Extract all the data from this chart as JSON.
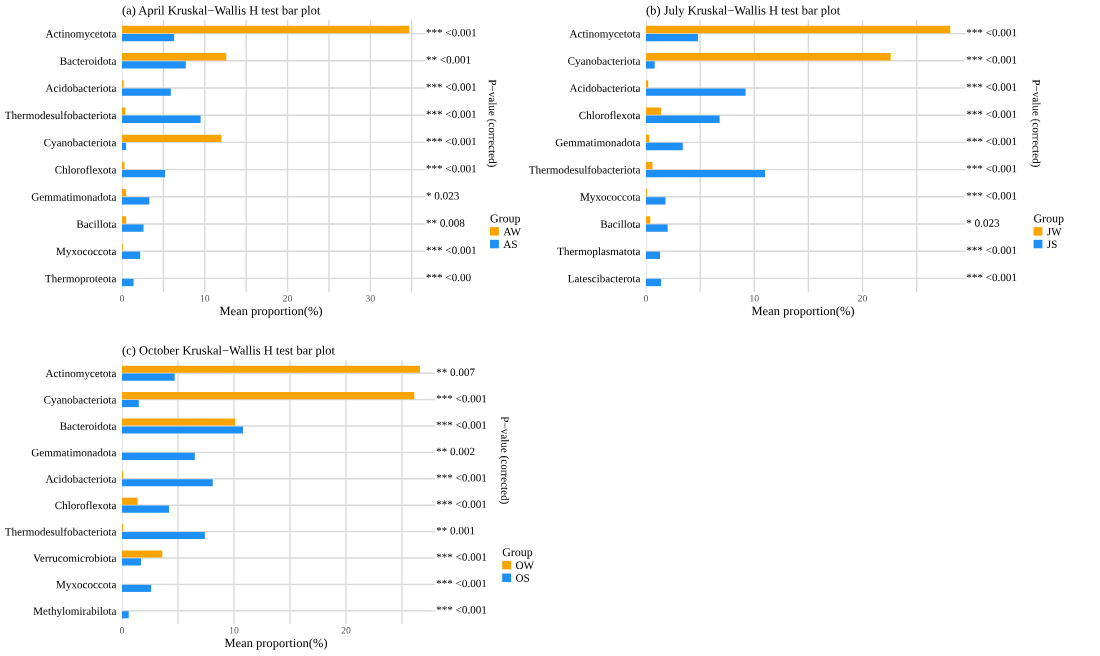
{
  "chart_data": [
    {
      "type": "bar",
      "orientation": "horizontal",
      "title": "(a) April Kruskal−Wallis H test bar plot",
      "xlabel": "Mean proportion(%)",
      "y2label": "P−value (corrected)",
      "legend_title": "Group",
      "legend": "right",
      "grid": true,
      "categories": [
        "Actinomycetota",
        "Bacteroidota",
        "Acidobacteriota",
        "Thermodesulfobacteriota",
        "Cyanobacteriota",
        "Chloroflexota",
        "Gemmatimonadota",
        "Bacillota",
        "Myxococcota",
        "Thermoproteota"
      ],
      "series": [
        {
          "name": "AW",
          "color": "#f9a400",
          "values": [
            34.7,
            12.6,
            0.2,
            0.4,
            12.0,
            0.3,
            0.5,
            0.5,
            0.1,
            0
          ]
        },
        {
          "name": "AS",
          "color": "#1e8ff5",
          "values": [
            6.3,
            7.7,
            5.9,
            9.5,
            0.5,
            5.2,
            3.3,
            2.6,
            2.2,
            1.4
          ]
        }
      ],
      "xlim": [
        0,
        36
      ],
      "xticks": [
        0,
        {
          "value": 5,
          "label": null
        },
        10,
        {
          "value": 15,
          "label": null
        },
        20,
        {
          "value": 25,
          "label": null
        },
        30,
        {
          "value": 35,
          "label": null
        }
      ],
      "annotations": [
        "*** <0.001",
        "** <0.001",
        "*** <0.001",
        "*** <0.001",
        "*** <0.001",
        "*** <0.001",
        "* 0.023",
        "** 0.008",
        "*** <0.001",
        "*** <0.00"
      ]
    },
    {
      "type": "bar",
      "orientation": "horizontal",
      "title": "(b) July Kruskal−Wallis H test bar plot",
      "xlabel": "Mean proportion(%)",
      "y2label": "P−value (corrected)",
      "legend_title": "Group",
      "legend": "right",
      "grid": true,
      "categories": [
        "Actinomycetota",
        "Cyanobacteriota",
        "Acidobacteriota",
        "Chloroflexota",
        "Gemmatimonadota",
        "Thermodesulfobacteriota",
        "Myxococcota",
        "Bacillota",
        "Thermoplasmatota",
        "Latescibacterota"
      ],
      "series": [
        {
          "name": "JW",
          "color": "#f9a400",
          "values": [
            28.1,
            22.6,
            0.2,
            1.4,
            0.3,
            0.6,
            0.1,
            0.4,
            0,
            0
          ]
        },
        {
          "name": "JS",
          "color": "#1e8ff5",
          "values": [
            4.8,
            0.8,
            9.2,
            6.8,
            3.4,
            11.0,
            1.8,
            2.0,
            1.3,
            1.4
          ]
        }
      ],
      "xlim": [
        0,
        29
      ],
      "xticks": [
        0,
        {
          "value": 5,
          "label": null
        },
        10,
        {
          "value": 15,
          "label": null
        },
        20,
        {
          "value": 25,
          "label": null
        }
      ],
      "annotations": [
        "*** <0.001",
        "*** <0.001",
        "*** <0.001",
        "*** <0.001",
        "*** <0.001",
        "*** <0.001",
        "*** <0.001",
        "* 0.023",
        "*** <0.001",
        "*** <0.001"
      ]
    },
    {
      "type": "bar",
      "orientation": "horizontal",
      "title": "(c) October Kruskal−Wallis H test bar plot",
      "xlabel": "Mean proportion(%)",
      "y2label": "P−value (corrected)",
      "legend_title": "Group",
      "legend": "right",
      "grid": true,
      "categories": [
        "Actinomycetota",
        "Cyanobacteriota",
        "Bacteroidota",
        "Gemmatimonadota",
        "Acidobacteriota",
        "Chloroflexota",
        "Thermodesulfobacteriota",
        "Verrucomicrobiota",
        "Myxococcota",
        "Methylomirabilota"
      ],
      "series": [
        {
          "name": "OW",
          "color": "#f9a400",
          "values": [
            26.6,
            26.1,
            10.1,
            0,
            0.1,
            1.4,
            0.1,
            3.6,
            0,
            0
          ]
        },
        {
          "name": "OS",
          "color": "#1e8ff5",
          "values": [
            4.7,
            1.5,
            10.8,
            6.5,
            8.1,
            4.2,
            7.4,
            1.7,
            2.6,
            0.6
          ]
        }
      ],
      "xlim": [
        0,
        27.5
      ],
      "xticks": [
        0,
        {
          "value": 5,
          "label": null
        },
        10,
        {
          "value": 15,
          "label": null
        },
        20,
        {
          "value": 25,
          "label": null
        }
      ],
      "annotations": [
        "** 0.007",
        "*** <0.001",
        "*** <0.001",
        "** 0.002",
        "*** <0.001",
        "*** <0.001",
        "** 0.001",
        "*** <0.001",
        "*** <0.001",
        "*** <0.001"
      ]
    }
  ]
}
